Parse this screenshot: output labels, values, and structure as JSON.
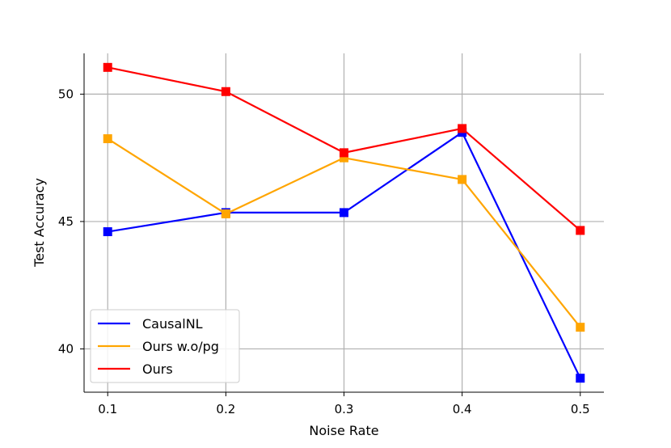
{
  "chart_data": {
    "type": "line",
    "x": [
      0.1,
      0.2,
      0.3,
      0.4,
      0.5
    ],
    "xticks": [
      "0.1",
      "0.2",
      "0.3",
      "0.4",
      "0.5"
    ],
    "yticks": [
      40,
      45,
      50
    ],
    "xlabel": "Noise Rate",
    "ylabel": "Test Accuracy",
    "xlim": [
      0.08,
      0.52
    ],
    "ylim": [
      38.3,
      51.6
    ],
    "grid": true,
    "legend_position": "lower-left",
    "marker": "square",
    "series": [
      {
        "name": "CausalNL",
        "color": "#0000ff",
        "values": [
          44.6,
          45.35,
          45.35,
          48.5,
          38.85
        ]
      },
      {
        "name": "Ours w.o/pg",
        "color": "#ffa500",
        "values": [
          48.25,
          45.3,
          47.5,
          46.65,
          40.85
        ]
      },
      {
        "name": "Ours",
        "color": "#ff0000",
        "values": [
          51.05,
          50.1,
          47.7,
          48.65,
          44.65
        ]
      }
    ]
  }
}
